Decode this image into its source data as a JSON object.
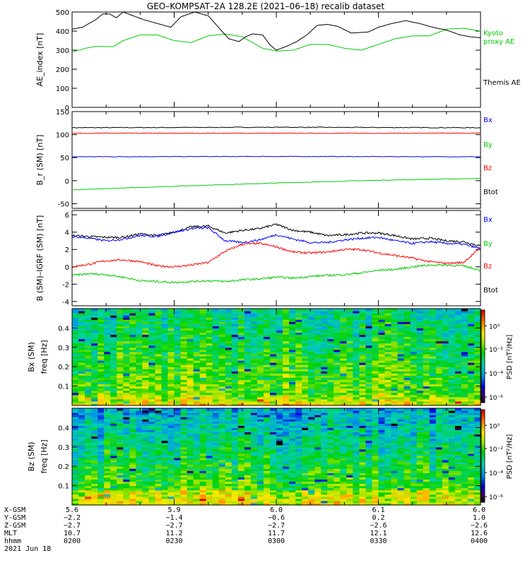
{
  "title": "GEO–KOMPSAT–2A 128.2E (2021–06–18) recalib dataset",
  "chart_data": [
    {
      "type": "line",
      "ylabel": "AE_index [nT]",
      "ylim": [
        0,
        500
      ],
      "yticks": [
        0,
        100,
        200,
        300,
        400,
        500
      ],
      "x_range": [
        0,
        120
      ],
      "x_unit": "minutes after 02:00 UT",
      "series": [
        {
          "name": "Kyoto proxy AE",
          "color": "#00cc00",
          "x": [
            0,
            4,
            7,
            12,
            15,
            20,
            25,
            30,
            35,
            40,
            45,
            50,
            56,
            60,
            65,
            70,
            75,
            80,
            85,
            90,
            95,
            100,
            105,
            110,
            115,
            120
          ],
          "values": [
            290,
            310,
            320,
            318,
            350,
            380,
            380,
            350,
            340,
            375,
            385,
            370,
            310,
            295,
            300,
            330,
            330,
            310,
            300,
            330,
            360,
            375,
            375,
            410,
            415,
            400
          ]
        },
        {
          "name": "Themis AE",
          "color": "#000000",
          "x": [
            0,
            3,
            7,
            9,
            11,
            13,
            15,
            18,
            21,
            25,
            29,
            32,
            36,
            40,
            43,
            46,
            49,
            51,
            53,
            56,
            58,
            60,
            63,
            66,
            69,
            72,
            75,
            78,
            82,
            87,
            90,
            94,
            98,
            102,
            106,
            110,
            114,
            117,
            120
          ],
          "values": [
            410,
            420,
            460,
            490,
            490,
            470,
            500,
            480,
            460,
            440,
            420,
            475,
            500,
            480,
            420,
            360,
            345,
            370,
            385,
            380,
            330,
            300,
            320,
            345,
            380,
            430,
            435,
            425,
            390,
            395,
            420,
            440,
            455,
            440,
            420,
            405,
            380,
            370,
            365
          ]
        }
      ]
    },
    {
      "type": "line",
      "ylabel": "B_r (SM) [nT]",
      "ylim": [
        -60,
        150
      ],
      "yticks": [
        -50,
        0,
        50,
        100,
        150
      ],
      "x_range": [
        0,
        120
      ],
      "series": [
        {
          "name": "Bx",
          "color": "#0000ff",
          "x": [
            0,
            30,
            60,
            90,
            120
          ],
          "values": [
            52,
            52.3,
            52.6,
            52.3,
            52
          ]
        },
        {
          "name": "By",
          "color": "#00cc00",
          "x": [
            0,
            30,
            60,
            90,
            120
          ],
          "values": [
            -20,
            -12,
            -5,
            1,
            5
          ]
        },
        {
          "name": "Bz",
          "color": "#ff0000",
          "x": [
            0,
            30,
            60,
            90,
            120
          ],
          "values": [
            103,
            103,
            103,
            103,
            103
          ]
        },
        {
          "name": "Btot",
          "color": "#000000",
          "x": [
            0,
            30,
            60,
            90,
            120
          ],
          "values": [
            115,
            115.5,
            116,
            115.5,
            115
          ]
        }
      ]
    },
    {
      "type": "line",
      "ylabel": "B (SM)–IGRF (SM) [nT]",
      "ylim": [
        -4.5,
        6.5
      ],
      "yticks": [
        -4,
        -2,
        0,
        2,
        4,
        6
      ],
      "x_range": [
        0,
        120
      ],
      "series": [
        {
          "name": "Bx",
          "color": "#0000ff",
          "x": [
            0,
            5,
            10,
            15,
            20,
            25,
            30,
            35,
            40,
            45,
            50,
            55,
            60,
            65,
            70,
            75,
            80,
            85,
            90,
            95,
            100,
            105,
            110,
            115,
            120
          ],
          "values": [
            3.5,
            3.3,
            3.0,
            3.2,
            3.6,
            3.5,
            4.0,
            4.4,
            4.5,
            3.0,
            2.8,
            3.1,
            3.7,
            3.2,
            2.8,
            2.8,
            3.1,
            3.3,
            3.4,
            3.0,
            2.7,
            2.9,
            2.7,
            2.6,
            2.1
          ]
        },
        {
          "name": "By",
          "color": "#00cc00",
          "x": [
            0,
            5,
            10,
            15,
            20,
            25,
            30,
            35,
            40,
            45,
            50,
            55,
            60,
            65,
            70,
            75,
            80,
            85,
            90,
            95,
            100,
            105,
            110,
            115,
            120
          ],
          "values": [
            -1.0,
            -0.8,
            -0.9,
            -1.2,
            -1.6,
            -1.7,
            -1.8,
            -1.7,
            -1.6,
            -1.7,
            -1.5,
            -1.4,
            -1.2,
            -1.3,
            -1.1,
            -1.0,
            -0.9,
            -0.7,
            -0.4,
            -0.3,
            0.0,
            0.2,
            0.2,
            0.1,
            -0.4
          ]
        },
        {
          "name": "Bz",
          "color": "#ff0000",
          "x": [
            0,
            5,
            10,
            15,
            20,
            25,
            30,
            35,
            40,
            45,
            50,
            55,
            60,
            65,
            70,
            75,
            80,
            85,
            90,
            95,
            100,
            105,
            110,
            115,
            120
          ],
          "values": [
            0.0,
            0.3,
            0.7,
            0.8,
            0.6,
            0.1,
            0.0,
            0.2,
            0.5,
            1.8,
            2.6,
            2.7,
            2.3,
            1.7,
            1.6,
            1.7,
            2.0,
            2.0,
            1.6,
            1.3,
            1.0,
            0.6,
            0.4,
            0.5,
            2.2
          ]
        },
        {
          "name": "Btot",
          "color": "#000000",
          "x": [
            0,
            5,
            10,
            15,
            20,
            25,
            30,
            35,
            40,
            45,
            50,
            55,
            60,
            65,
            70,
            75,
            80,
            85,
            90,
            95,
            100,
            105,
            110,
            115,
            120
          ],
          "values": [
            3.6,
            3.5,
            3.4,
            3.4,
            3.8,
            3.6,
            4.0,
            4.6,
            4.7,
            3.9,
            4.2,
            4.4,
            4.9,
            4.2,
            4.0,
            3.6,
            3.7,
            3.9,
            3.9,
            3.6,
            3.2,
            3.3,
            3.0,
            2.9,
            2.4
          ]
        }
      ]
    },
    {
      "type": "heatmap",
      "component": "Bx (SM)",
      "ylabel": "freq [Hz]",
      "ylim": [
        0,
        0.5
      ],
      "yticks": [
        0.1,
        0.2,
        0.3,
        0.4
      ],
      "colorbar_label": "PSD [nT²/Hz]",
      "colorbar_ticks": [
        "10⁰",
        "10⁻²",
        "10⁻⁴",
        "10⁻⁶"
      ]
    },
    {
      "type": "heatmap",
      "component": "Bz (SM)",
      "ylabel": "freq [Hz]",
      "ylim": [
        0,
        0.5
      ],
      "yticks": [
        0.1,
        0.2,
        0.3,
        0.4
      ],
      "colorbar_label": "PSD [nT²/Hz]",
      "colorbar_ticks": [
        "10⁰",
        "10⁻²",
        "10⁻⁴",
        "10⁻⁶"
      ]
    }
  ],
  "footer": {
    "rows": [
      {
        "label": "X-GSM",
        "values": [
          "5.6",
          "5.9",
          "6.0",
          "6.1",
          "6.0"
        ]
      },
      {
        "label": "Y-GSM",
        "values": [
          "−2.2",
          "−1.4",
          "−0.6",
          "0.2",
          "1.0"
        ]
      },
      {
        "label": "Z-GSM",
        "values": [
          "−2.7",
          "−2.7",
          "−2.7",
          "−2.6",
          "−2.6"
        ]
      },
      {
        "label": "MLT",
        "values": [
          "10.7",
          "11.2",
          "11.7",
          "12.1",
          "12.6"
        ]
      },
      {
        "label": "hhmm",
        "values": [
          "0200",
          "0230",
          "0300",
          "0330",
          "0400"
        ]
      }
    ],
    "date": "2021 Jun 18"
  },
  "colors": {
    "kyoto": "#00cc00",
    "themis": "#000000",
    "bx": "#0000ff",
    "by": "#00cc00",
    "bz": "#ff0000",
    "btot": "#000000"
  }
}
